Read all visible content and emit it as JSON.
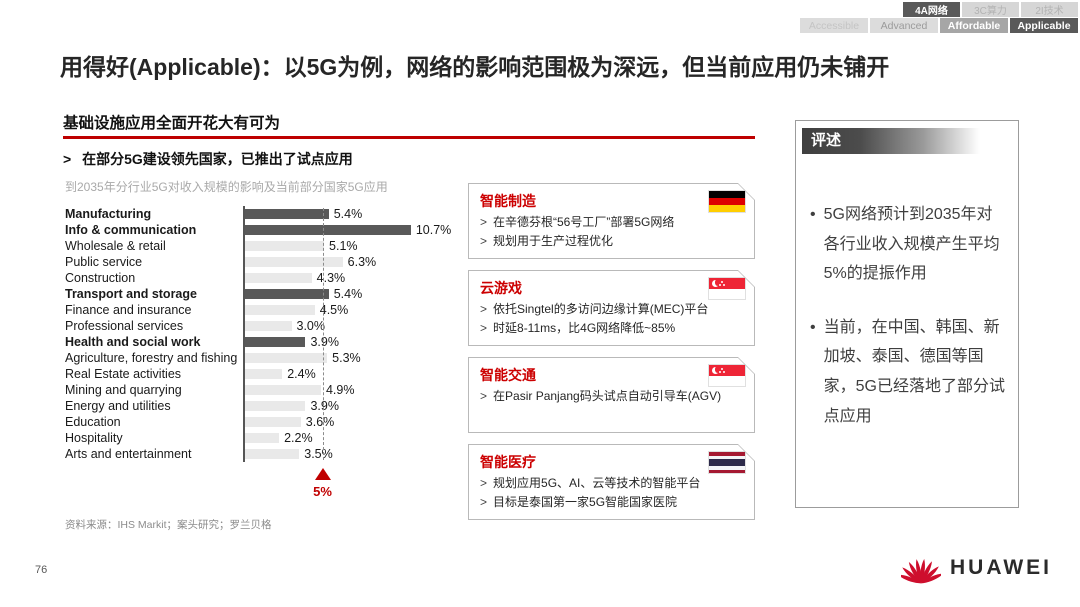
{
  "nav": {
    "row1": [
      {
        "label": "4A网络",
        "state": "active"
      },
      {
        "label": "3C算力",
        "state": "inactive"
      },
      {
        "label": "2I技术",
        "state": "inactive"
      }
    ],
    "row2": [
      {
        "label": "Accessible",
        "state": "inactive"
      },
      {
        "label": "Advanced",
        "state": "inactive"
      },
      {
        "label": "Affordable",
        "state": "highlight"
      },
      {
        "label": "Applicable",
        "state": "active"
      }
    ]
  },
  "title": "用得好(Applicable)：以5G为例，网络的影响范围极为深远，但当前应用仍未铺开",
  "section": {
    "heading": "基础设施应用全面开花大有可为",
    "bullet_prefix": ">",
    "bullet": "在部分5G建设领先国家，已推出了试点应用"
  },
  "chart_data": {
    "type": "bar",
    "orientation": "horizontal",
    "title": "到2035年分行业5G对收入规模的影响及当前部分国家5G应用",
    "categories": [
      "Manufacturing",
      "Info & communication",
      "Wholesale & retail",
      "Public service",
      "Construction",
      "Transport and storage",
      "Finance and insurance",
      "Professional services",
      "Health and social work",
      "Agriculture, forestry and fishing",
      "Real Estate activities",
      "Mining and quarrying",
      "Energy and utilities",
      "Education",
      "Hospitality",
      "Arts and entertainment"
    ],
    "values": [
      5.4,
      10.7,
      5.1,
      6.3,
      4.3,
      5.4,
      4.5,
      3.0,
      3.9,
      5.3,
      2.4,
      4.9,
      3.9,
      3.6,
      2.2,
      3.5
    ],
    "emphasized_indices": [
      0,
      1,
      5,
      8
    ],
    "value_suffix": "%",
    "xlim": [
      0,
      11
    ],
    "reference_line": {
      "value": 5,
      "label": "5%"
    },
    "source": "资料来源：IHS Markit；案头研究；罗兰贝格",
    "bar_color_dark": "#595959",
    "bar_color_light": "#e9e9e9"
  },
  "cards": [
    {
      "title": "智能制造",
      "flag": "germany",
      "bullets": [
        "在辛德芬根“56号工厂”部署5G网络",
        "规划用于生产过程优化"
      ]
    },
    {
      "title": "云游戏",
      "flag": "singapore",
      "bullets": [
        "依托Singtel的多访问边缘计算(MEC)平台",
        "时延8-11ms，比4G网络降低~85%"
      ]
    },
    {
      "title": "智能交通",
      "flag": "singapore",
      "bullets": [
        "在Pasir Panjang码头试点自动引导车(AGV)"
      ]
    },
    {
      "title": "智能医疗",
      "flag": "thailand",
      "bullets": [
        "规划应用5G、AI、云等技术的智能平台",
        "目标是泰国第一家5G智能国家医院"
      ]
    }
  ],
  "comment": {
    "header": "评述",
    "bullets": [
      "5G网络预计到2035年对各行业收入规模产生平均5%的提振作用",
      "当前，在中国、韩国、新加坡、泰国、德国等国家，5G已经落地了部分试点应用"
    ]
  },
  "footer": {
    "page": "76",
    "brand": "HUAWEI"
  },
  "colors": {
    "accent_red": "#c00000",
    "card_title_red": "#cc0001",
    "tab_dark": "#595959",
    "huawei_red": "#ce0e2d"
  },
  "icons": {
    "germany-flag-icon": "css-stripes black/red/gold",
    "singapore-flag-icon": "css crescent+stars on red/white",
    "thailand-flag-icon": "css-stripes red/white/blue",
    "reference-marker-icon": "red triangle ▲",
    "huawei-logo-icon": "svg red petal fan"
  }
}
